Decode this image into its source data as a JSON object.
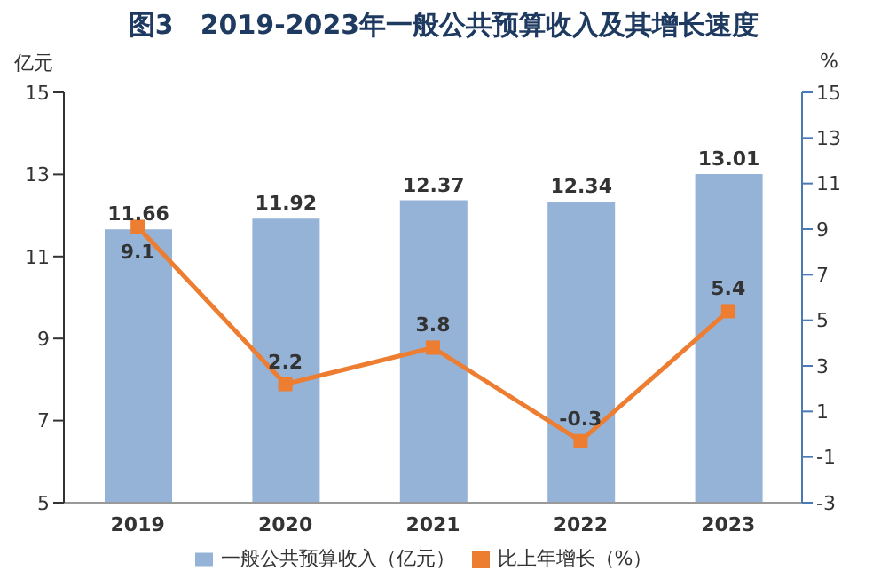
{
  "chart_data": {
    "type": "bar",
    "title": "图3　2019-2023年一般公共预算收入及其增长速度",
    "ylabel": "亿元",
    "y2label": "%",
    "categories": [
      "2019",
      "2020",
      "2021",
      "2022",
      "2023"
    ],
    "series": [
      {
        "name": "一般公共预算收入（亿元）",
        "color": "#95b3d7",
        "values": [
          11.66,
          11.92,
          12.37,
          12.34,
          13.01
        ]
      },
      {
        "name": "比上年增长（%）",
        "type": "line",
        "axis": "y2",
        "color": "#ed7d31",
        "values": [
          9.1,
          2.2,
          3.8,
          -0.3,
          5.4
        ]
      }
    ],
    "ylim": [
      5,
      15
    ],
    "yticks": [
      5,
      7,
      9,
      11,
      13,
      15
    ],
    "y2lim": [
      -3,
      15
    ],
    "y2ticks": [
      -3,
      -1,
      1,
      3,
      5,
      7,
      9,
      11,
      13,
      15
    ],
    "data_labels": true,
    "legend": "bottom",
    "marker": "square",
    "line_style": "solid"
  }
}
